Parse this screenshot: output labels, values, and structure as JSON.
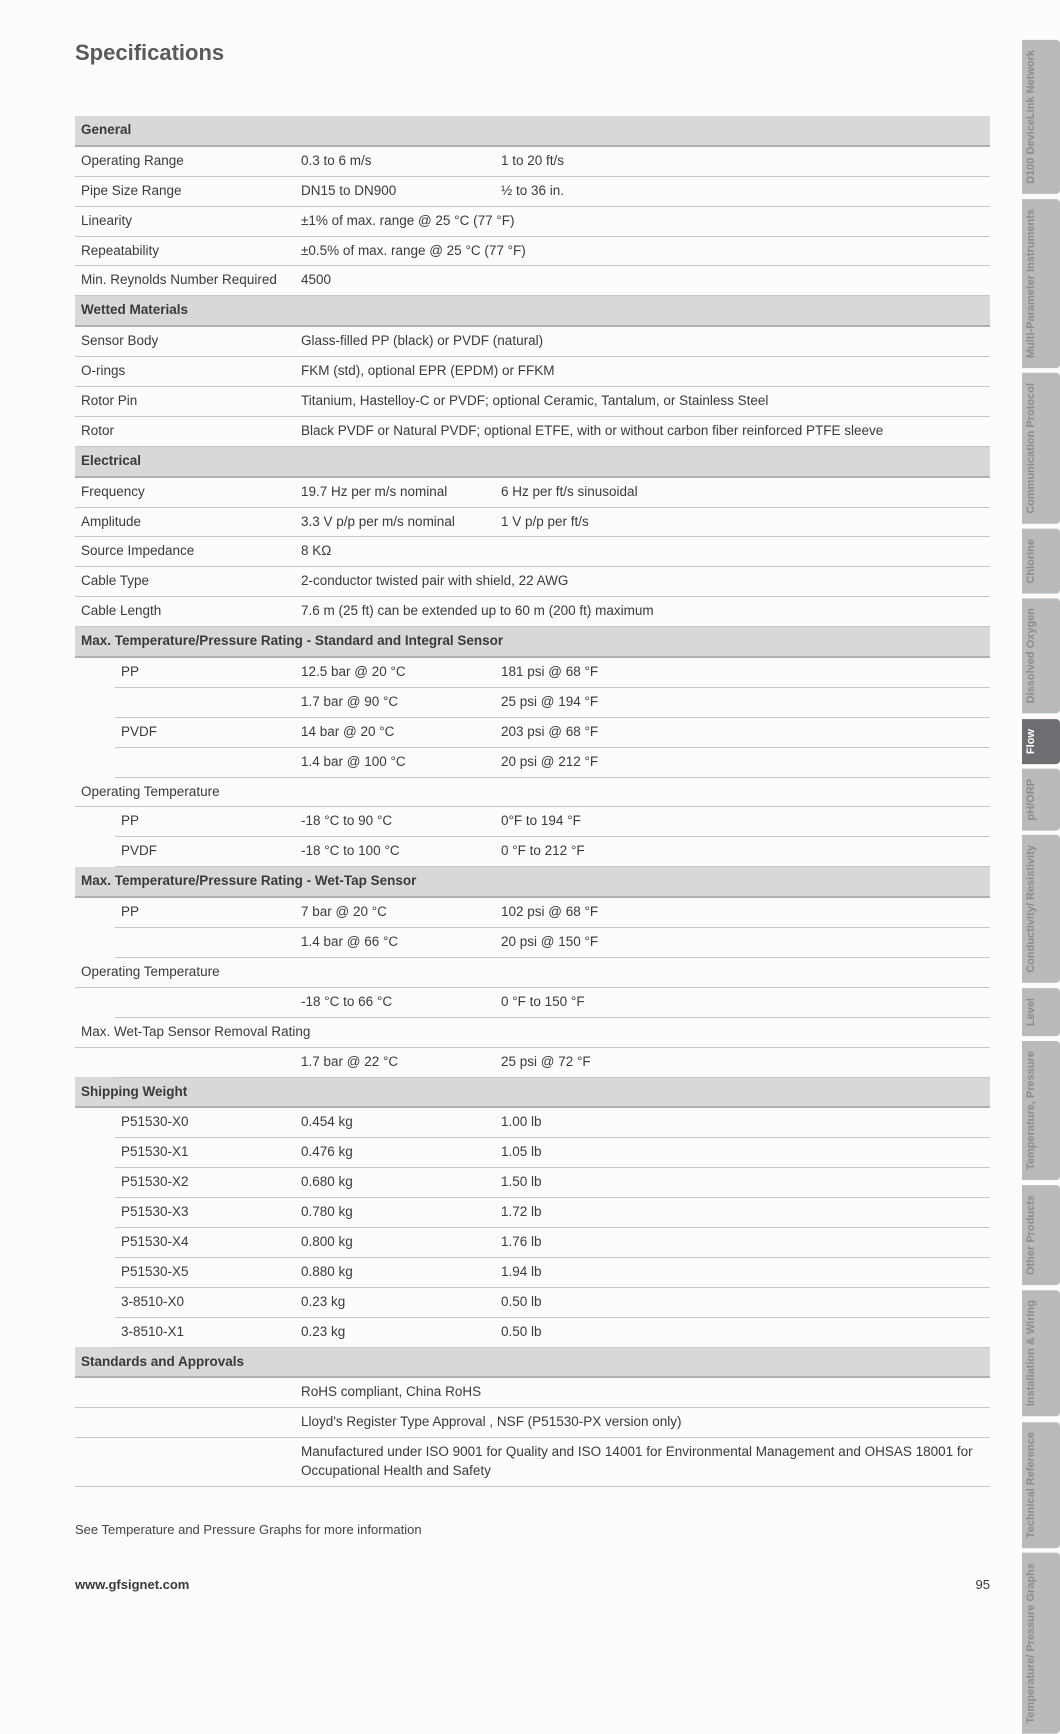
{
  "title": "Specifications",
  "footnote": "See Temperature and Pressure Graphs for more information",
  "footer_url": "www.gfsignet.com",
  "page_number": "95",
  "colors": {
    "section_bg": "#d8d8d8",
    "border": "#c8c8c8",
    "text": "#3a3a3a"
  },
  "sections": {
    "general": {
      "header": "General",
      "rows": [
        {
          "label": "Operating Range",
          "v1": "0.3 to 6 m/s",
          "v2": "1 to 20 ft/s"
        },
        {
          "label": "Pipe Size Range",
          "v1": "DN15 to DN900",
          "v2": "½ to 36 in."
        },
        {
          "label": "Linearity",
          "v1": "±1% of max. range @ 25 °C (77 °F)",
          "v2": ""
        },
        {
          "label": "Repeatability",
          "v1": "±0.5% of max. range @ 25 °C (77 °F)",
          "v2": ""
        },
        {
          "label": "Min. Reynolds Number Required",
          "v1": "4500",
          "v2": ""
        }
      ]
    },
    "wetted": {
      "header": "Wetted Materials",
      "rows": [
        {
          "label": "Sensor Body",
          "v1": "Glass-filled PP (black) or PVDF (natural)",
          "v2": ""
        },
        {
          "label": "O-rings",
          "v1": "FKM (std), optional EPR (EPDM) or FFKM",
          "v2": ""
        },
        {
          "label": "Rotor Pin",
          "v1": "Titanium, Hastelloy-C or PVDF; optional Ceramic, Tantalum, or Stainless Steel",
          "v2": ""
        },
        {
          "label": "Rotor",
          "v1": "Black PVDF or Natural PVDF; optional ETFE, with or without carbon fiber reinforced PTFE sleeve",
          "v2": ""
        }
      ]
    },
    "electrical": {
      "header": "Electrical",
      "rows": [
        {
          "label": "Frequency",
          "v1": "19.7 Hz per m/s nominal",
          "v2": "6 Hz per ft/s sinusoidal"
        },
        {
          "label": "Amplitude",
          "v1": "3.3 V p/p per m/s nominal",
          "v2": "1 V p/p per ft/s"
        },
        {
          "label": "Source Impedance",
          "v1": "8 KΩ",
          "v2": ""
        },
        {
          "label": "Cable Type",
          "v1": "2-conductor twisted pair with shield, 22 AWG",
          "v2": ""
        },
        {
          "label": "Cable Length",
          "v1": "7.6 m (25 ft) can be extended up to 60 m (200 ft) maximum",
          "v2": ""
        }
      ]
    },
    "maxtemp_std": {
      "header": "Max. Temperature/Pressure Rating - Standard and Integral Sensor",
      "rows": [
        {
          "sub": "PP",
          "v1": "12.5 bar @ 20 °C",
          "v2": "181 psi @ 68 °F"
        },
        {
          "sub": "",
          "v1": "1.7 bar @ 90 °C",
          "v2": "25 psi @ 194 °F"
        },
        {
          "sub": "PVDF",
          "v1": "14 bar @ 20 °C",
          "v2": "203 psi @ 68 °F"
        },
        {
          "sub": "",
          "v1": "1.4 bar @ 100 °C",
          "v2": "20 psi @ 212 °F"
        }
      ],
      "optemp_label": "Operating Temperature",
      "optemp_rows": [
        {
          "sub": "PP",
          "v1": "-18 °C to 90 °C",
          "v2": "0°F to 194 °F"
        },
        {
          "sub": "PVDF",
          "v1": "-18 °C to 100 °C",
          "v2": "0 °F to 212 °F"
        }
      ]
    },
    "maxtemp_wet": {
      "header": "Max. Temperature/Pressure Rating - Wet-Tap Sensor",
      "rows": [
        {
          "sub": "PP",
          "v1": "7 bar @ 20 °C",
          "v2": "102 psi @ 68 °F"
        },
        {
          "sub": "",
          "v1": "1.4 bar @ 66 °C",
          "v2": "20 psi @ 150 °F"
        }
      ],
      "optemp_label": "Operating Temperature",
      "optemp_rows": [
        {
          "sub": "",
          "v1": "-18 °C to 66 °C",
          "v2": "0 °F to 150 °F"
        }
      ],
      "removal_label": "Max. Wet-Tap Sensor Removal Rating",
      "removal_rows": [
        {
          "sub": "",
          "v1": "1.7 bar @ 22 °C",
          "v2": "25 psi @ 72 °F"
        }
      ]
    },
    "shipping": {
      "header": "Shipping Weight",
      "rows": [
        {
          "sub": "P51530-X0",
          "v1": "0.454 kg",
          "v2": "1.00 lb"
        },
        {
          "sub": "P51530-X1",
          "v1": "0.476 kg",
          "v2": "1.05 lb"
        },
        {
          "sub": "P51530-X2",
          "v1": "0.680 kg",
          "v2": "1.50 lb"
        },
        {
          "sub": "P51530-X3",
          "v1": "0.780 kg",
          "v2": "1.72 lb"
        },
        {
          "sub": "P51530-X4",
          "v1": "0.800 kg",
          "v2": "1.76 lb"
        },
        {
          "sub": "P51530-X5",
          "v1": "0.880 kg",
          "v2": "1.94 lb"
        },
        {
          "sub": "3-8510-X0",
          "v1": "0.23 kg",
          "v2": "0.50 lb"
        },
        {
          "sub": "3-8510-X1",
          "v1": "0.23 kg",
          "v2": "0.50 lb"
        }
      ]
    },
    "standards": {
      "header": "Standards and Approvals",
      "rows": [
        {
          "v1": "RoHS compliant, China RoHS"
        },
        {
          "v1": "Lloyd's Register Type Approval , NSF (P51530-PX version only)"
        },
        {
          "v1": "Manufactured under ISO 9001 for Quality and ISO 14001 for Environmental Management and OHSAS 18001 for Occupational Health and Safety"
        }
      ]
    }
  },
  "tabs": [
    {
      "label": "D100 DeviceLink Network",
      "bg": "#b9babb",
      "fg": "#8a8c8e"
    },
    {
      "label": "Multi-Parameter Instruments",
      "bg": "#b9babb",
      "fg": "#8a8c8e"
    },
    {
      "label": "Communication Protocol",
      "bg": "#b9babb",
      "fg": "#8a8c8e"
    },
    {
      "label": "Chlorine",
      "bg": "#b9babb",
      "fg": "#8a8c8e"
    },
    {
      "label": "Dissolved Oxygen",
      "bg": "#b9babb",
      "fg": "#8a8c8e"
    },
    {
      "label": "Flow",
      "bg": "#6d6e71",
      "fg": "#ffffff"
    },
    {
      "label": "pH/ORP",
      "bg": "#b9babb",
      "fg": "#8a8c8e"
    },
    {
      "label": "Conductivity/ Resistivity",
      "bg": "#b9babb",
      "fg": "#8a8c8e"
    },
    {
      "label": "Level",
      "bg": "#b9babb",
      "fg": "#8a8c8e"
    },
    {
      "label": "Temperature, Pressure",
      "bg": "#b9babb",
      "fg": "#8a8c8e"
    },
    {
      "label": "Other Products",
      "bg": "#b9babb",
      "fg": "#8a8c8e"
    },
    {
      "label": "Installation & Wiring",
      "bg": "#b9babb",
      "fg": "#8a8c8e"
    },
    {
      "label": "Technical Reference",
      "bg": "#b9babb",
      "fg": "#8a8c8e"
    },
    {
      "label": "Temperature/ Pressure Graphs",
      "bg": "#b9babb",
      "fg": "#8a8c8e"
    }
  ]
}
